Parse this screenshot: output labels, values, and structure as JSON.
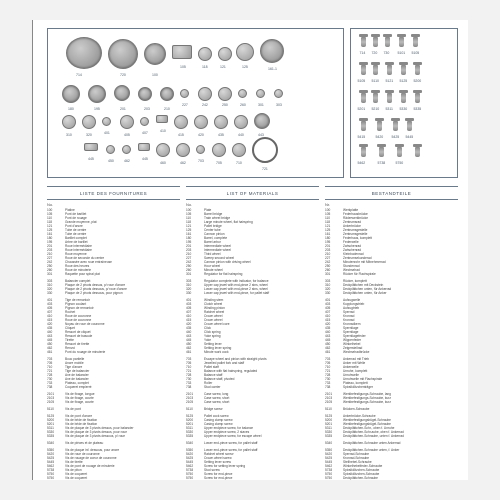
{
  "columns": [
    {
      "header": "LISTE DES FOURNITURES",
      "sub_no": "No.",
      "sub_desc": ""
    },
    {
      "header": "LIST OF MATERIALS",
      "sub_no": "No.",
      "sub_desc": ""
    },
    {
      "header": "BESTANDTEILE",
      "sub_no": "Nr.",
      "sub_desc": ""
    }
  ],
  "shape_labels_left": [
    "714",
    "720",
    "100",
    "105",
    "118",
    "121",
    "125",
    "161-1",
    "180",
    "195",
    "201",
    "203",
    "210",
    "227",
    "242",
    "250",
    "260",
    "301",
    "303",
    "310",
    "320",
    "401",
    "405",
    "407",
    "410",
    "415",
    "420",
    "435",
    "440",
    "443",
    "445",
    "450",
    "462",
    "445",
    "460",
    "462",
    "703",
    "705",
    "710",
    "721",
    "730"
  ],
  "shape_labels_right": [
    "714",
    "720",
    "730",
    "5101",
    "5105",
    "5105",
    "5110",
    "5121",
    "5125",
    "5200",
    "5201",
    "5210",
    "5311",
    "5330",
    "5335",
    "5415",
    "5420",
    "5425",
    "5445",
    "5462",
    "5738",
    "5750"
  ],
  "rows_fr": [
    [
      "100",
      "Platine"
    ],
    [
      "105",
      "Pont de barillet"
    ],
    [
      "110",
      "Pont de rouage"
    ],
    [
      "118",
      "Grande moyenne, plat"
    ],
    [
      "121",
      "Pont d'ancre"
    ],
    [
      "125",
      "Tube de centre"
    ],
    [
      "161",
      "Tube de centre"
    ],
    [
      "180",
      "Barillet complet"
    ],
    [
      "195",
      "Arbre de barillet"
    ],
    [
      "201",
      "Roue intermédiaire"
    ],
    [
      "203",
      "Roue intermédiaire"
    ],
    [
      "210",
      "Roue moyenne"
    ],
    [
      "227",
      "Roue de seconde du centre"
    ],
    [
      "242",
      "Chaussée avec roue entraîneuse"
    ],
    [
      "250",
      "Roue des heures"
    ],
    [
      "260",
      "Roue de minuterie"
    ],
    [
      "301",
      "Raquette pour spiral plat"
    ],
    [
      " ",
      " "
    ],
    [
      "303",
      "Balancier complet"
    ],
    [
      "310",
      "Plaque de 2 pivots dessus, p/ roue d'ancre"
    ],
    [
      "320",
      "Plaque de 2 pivots dessous, p/ roue d'ancre"
    ],
    [
      "330",
      "Plaque de 2 pivots dessous, pour pignon"
    ],
    [
      " ",
      " "
    ],
    [
      "401",
      "Tige de remontoir"
    ],
    [
      "403",
      "Pignon coulant"
    ],
    [
      "405",
      "Pignon de remontoir"
    ],
    [
      "407",
      "Rochet"
    ],
    [
      "410",
      "Roue de couronne"
    ],
    [
      "415",
      "Roue de couronne"
    ],
    [
      "420",
      "Noyau de roue de couronne"
    ],
    [
      "435",
      "Cliquet"
    ],
    [
      "440",
      "Ressort de cliquet"
    ],
    [
      "443",
      "Ressort de bascule"
    ],
    [
      "445",
      "Tirette"
    ],
    [
      "450",
      "Ressort de tirette"
    ],
    [
      "462",
      "Renvoi"
    ],
    [
      "461",
      "Pont du rouage de minuterie"
    ],
    [
      " ",
      " "
    ],
    [
      "703",
      "Bouc partielle"
    ],
    [
      "705",
      "Ancre mobile"
    ],
    [
      "710",
      "Tige d'ancre"
    ],
    [
      "721",
      "Tige de balancier"
    ],
    [
      "728",
      "Axe de balancier"
    ],
    [
      "730",
      "Axe de balancier"
    ],
    [
      "733",
      "Plateau, complet"
    ],
    [
      "738",
      "Coqueret empierré"
    ],
    [
      " ",
      " "
    ],
    [
      "2101",
      "Vis de fixage, longue"
    ],
    [
      "2103",
      "Vis de fixage, courte"
    ],
    [
      "2105",
      "Vis de fixage, courte"
    ],
    [
      " ",
      " "
    ],
    [
      "5110",
      "Vis de pont"
    ],
    [
      " ",
      " "
    ],
    [
      "5125",
      "Vis de pont d'ancre"
    ],
    [
      "5200",
      "Vis de bride de fixation"
    ],
    [
      "5201",
      "Vis de bride de fixation"
    ],
    [
      "5311",
      "Vis de plaque de 3 pivots dessus, pour balancier"
    ],
    [
      "5330",
      "Vis de plaque de 3 pivots dessus, pour roue"
    ],
    [
      "5335",
      "Vis de plaque de 3 pivots dessous, p/ roue"
    ],
    [
      " ",
      " "
    ],
    [
      "5340",
      "Vis de pièces et de plateau"
    ],
    [
      " ",
      " "
    ],
    [
      "5350",
      "Vis de plaque inf. dessous, pour ancre"
    ],
    [
      "5420",
      "Vis de roue de couronne"
    ],
    [
      "5425",
      "Vis de rouage de coeur de couronne"
    ],
    [
      "5445",
      "Vis de tirette"
    ],
    [
      "5462",
      "Vis de pont de rouage de minuterie"
    ],
    [
      "5738",
      "Vis de piton"
    ],
    [
      "5750",
      "Vis de coqueret"
    ],
    [
      "5750",
      "Vis de coqueret"
    ]
  ],
  "rows_en": [
    [
      "100",
      "Plate"
    ],
    [
      "105",
      "Barrel bridge"
    ],
    [
      "110",
      "Train wheel bridge"
    ],
    [
      "118",
      "Large minute wheel, flat hairspring"
    ],
    [
      "121",
      "Pallet bridge"
    ],
    [
      "125",
      "Center tube"
    ],
    [
      "161",
      "Cannon pinion"
    ],
    [
      "180",
      "Barrel, complete"
    ],
    [
      "195",
      "Barrel arbor"
    ],
    [
      "201",
      "Intermediate wheel"
    ],
    [
      "203",
      "Intermediate wheel"
    ],
    [
      "210",
      "Third wheel"
    ],
    [
      "227",
      "Sweep second wheel"
    ],
    [
      "242",
      "Cannon pinion with driving wheel"
    ],
    [
      "250",
      "Hour wheel"
    ],
    [
      "260",
      "Minute wheel"
    ],
    [
      "301",
      "Regulator for flat hairspring"
    ],
    [
      " ",
      " "
    ],
    [
      "303",
      "Regulator complete with indicator, for balance"
    ],
    [
      "310",
      "Upper cap jewel with end-piece 2 stns, wheel"
    ],
    [
      "320",
      "Lower cap jewel with end-piece 2 stns, wheel"
    ],
    [
      "330",
      "Lower cap jewel with end-piece, for pallet staff"
    ],
    [
      " ",
      " "
    ],
    [
      "401",
      "Winding stem"
    ],
    [
      "403",
      "Clutch wheel"
    ],
    [
      "405",
      "Winding pinion"
    ],
    [
      "407",
      "Ratchet wheel"
    ],
    [
      "410",
      "Crown wheel"
    ],
    [
      "415",
      "Crown wheel"
    ],
    [
      "420",
      "Crown wheel core"
    ],
    [
      "435",
      "Click"
    ],
    [
      "440",
      "Click spring"
    ],
    [
      "443",
      "Yoke spring"
    ],
    [
      "445",
      "Yoke"
    ],
    [
      "450",
      "Setting lever"
    ],
    [
      "462",
      "Setting lever spring"
    ],
    [
      "461",
      "Minute work cock"
    ],
    [
      " ",
      " "
    ],
    [
      "703",
      "Escape wheel and pinion with straight pivots"
    ],
    [
      "705",
      "Jewelled pallet fork and staff"
    ],
    [
      "710",
      "Pallet staff"
    ],
    [
      "721",
      "Balance with flat hairspring, regulated"
    ],
    [
      "728",
      "Balance staff"
    ],
    [
      "730",
      "Balance staff, pivoted"
    ],
    [
      "733",
      "Roller"
    ],
    [
      "738",
      "Stud carrier"
    ],
    [
      " ",
      " "
    ],
    [
      "2101",
      "Case screw, long"
    ],
    [
      "2103",
      "Case screw, short"
    ],
    [
      "2105",
      "Case screw, short"
    ],
    [
      " ",
      " "
    ],
    [
      "5110",
      "Bridge screw"
    ],
    [
      " ",
      " "
    ],
    [
      "5125",
      "Pallet cock screw"
    ],
    [
      "5200",
      "Casing clamp screw"
    ],
    [
      "5201",
      "Casing clamp screw"
    ],
    [
      "5311",
      "Upper endpiece screw, for balance"
    ],
    [
      "5330",
      "Upper endpiece screw, 2 staves"
    ],
    [
      "5335",
      "Upper endpiece screw, for escape wheel"
    ],
    [
      " ",
      " "
    ],
    [
      "5340",
      "Lower end-piece screw, for pallet staff"
    ],
    [
      " ",
      " "
    ],
    [
      "5350",
      "Lower end-piece screw, for pallet staff"
    ],
    [
      "5420",
      "Ratchet wheel screw"
    ],
    [
      "5425",
      "Crown wheel screw"
    ],
    [
      "5445",
      "Setting lever screw"
    ],
    [
      "5462",
      "Screw for setting lever spring"
    ],
    [
      "5738",
      "Stud screw"
    ],
    [
      "5750",
      "Screw for end-piece"
    ],
    [
      "5750",
      "Screw for end-piece"
    ]
  ],
  "rows_de": [
    [
      "100",
      "Werkplatte"
    ],
    [
      "105",
      "Federhausbrücke"
    ],
    [
      "110",
      "Räderwerkbrücke"
    ],
    [
      "118",
      "Zentrumsrad"
    ],
    [
      "121",
      "Ankerbrücke"
    ],
    [
      "125",
      "Zentrumsgestelle"
    ],
    [
      "161",
      "Zentrumsgestelle"
    ],
    [
      "180",
      "Federhaus, komplett"
    ],
    [
      "195",
      "Federwelle"
    ],
    [
      "201",
      "Zwischenrad"
    ],
    [
      "203",
      "Zwischenrad"
    ],
    [
      "210",
      "Kleinbodenrad"
    ],
    [
      "227",
      "Zentrumsekunderad"
    ],
    [
      "242",
      "Minutenrohr mit Mitnehmerrad"
    ],
    [
      "250",
      "Stundenrad"
    ],
    [
      "260",
      "Wechselrad"
    ],
    [
      "301",
      "Rücker für Flachspirale"
    ],
    [
      " ",
      " "
    ],
    [
      "303",
      "Rücker, komplett"
    ],
    [
      "310",
      "Deckplättchen mit Deckstein"
    ],
    [
      "320",
      "Deckplättchen unten, für Ankerrad"
    ],
    [
      "330",
      "Deckplättchen unten, für Anker"
    ],
    [
      " ",
      " "
    ],
    [
      "401",
      "Aufzugwelle"
    ],
    [
      "403",
      "Kupplungstrieb"
    ],
    [
      "405",
      "Aufzugtrieb"
    ],
    [
      "407",
      "Sperrad"
    ],
    [
      "410",
      "Kronrad"
    ],
    [
      "415",
      "Kronrad"
    ],
    [
      "420",
      "Kronradkern"
    ],
    [
      "435",
      "Sperrklage"
    ],
    [
      "440",
      "Sperrklage"
    ],
    [
      "443",
      "Sperrklagefeder"
    ],
    [
      "445",
      "Wippenfeder"
    ],
    [
      "450",
      "Winkelhebel"
    ],
    [
      "462",
      "Zeigerstellrad"
    ],
    [
      "461",
      "Wechselradbrücke"
    ],
    [
      " ",
      " "
    ],
    [
      "703",
      "Ankerrad mit Trieb"
    ],
    [
      "705",
      "Anker mit Welle"
    ],
    [
      "710",
      "Ankerwelle"
    ],
    [
      "721",
      "Unruhe, komplett"
    ],
    [
      "728",
      "Unruhwelle"
    ],
    [
      "730",
      "Unruhwelle mit Flachspirale"
    ],
    [
      "733",
      "Plateau, komplett"
    ],
    [
      "738",
      "Spiralklötzchenträger"
    ],
    [
      " ",
      " "
    ],
    [
      "2101",
      "Werkbefestigungs-Schraube, lang"
    ],
    [
      "2103",
      "Werkbefestigungs-Schraube, kurz"
    ],
    [
      "2105",
      "Werkbefestigungs-Schraube, kurz"
    ],
    [
      " ",
      " "
    ],
    [
      "5110",
      "Brücken-Schraube"
    ],
    [
      " ",
      " "
    ],
    [
      "5125",
      "Ankerbrücke-Schraube"
    ],
    [
      "5200",
      "Werkbefestigungsbügel-Schraube"
    ],
    [
      "5201",
      "Werkbefestigungsbügel-Schraube"
    ],
    [
      "5311",
      "Deckplättchen-Schr., oben f. Unruhe"
    ],
    [
      "5330",
      "Deckplättchen-Schr.aube, oben f. Ankerrad"
    ],
    [
      "5335",
      "Deckplättchen-Schraube, unten f. Ankerrad"
    ],
    [
      " ",
      " "
    ],
    [
      "5340",
      "Deckplättchen-Schraube unten Ankerrad"
    ],
    [
      " ",
      " "
    ],
    [
      "5350",
      "Deckplättchen-Schraube unten, f. Anker"
    ],
    [
      "5420",
      "Sperrad-Schraube"
    ],
    [
      "5425",
      "Kronrad-Schraube"
    ],
    [
      "5445",
      "Stellhebel-Schraube"
    ],
    [
      "5462",
      "Winkelhebelfeder-Schraube"
    ],
    [
      "5738",
      "Spiralklötzchen-Schraube"
    ],
    [
      "5750",
      "Spiralklötzchen-Schraube"
    ],
    [
      "5750",
      "Deckplättchen-Schraube"
    ]
  ]
}
